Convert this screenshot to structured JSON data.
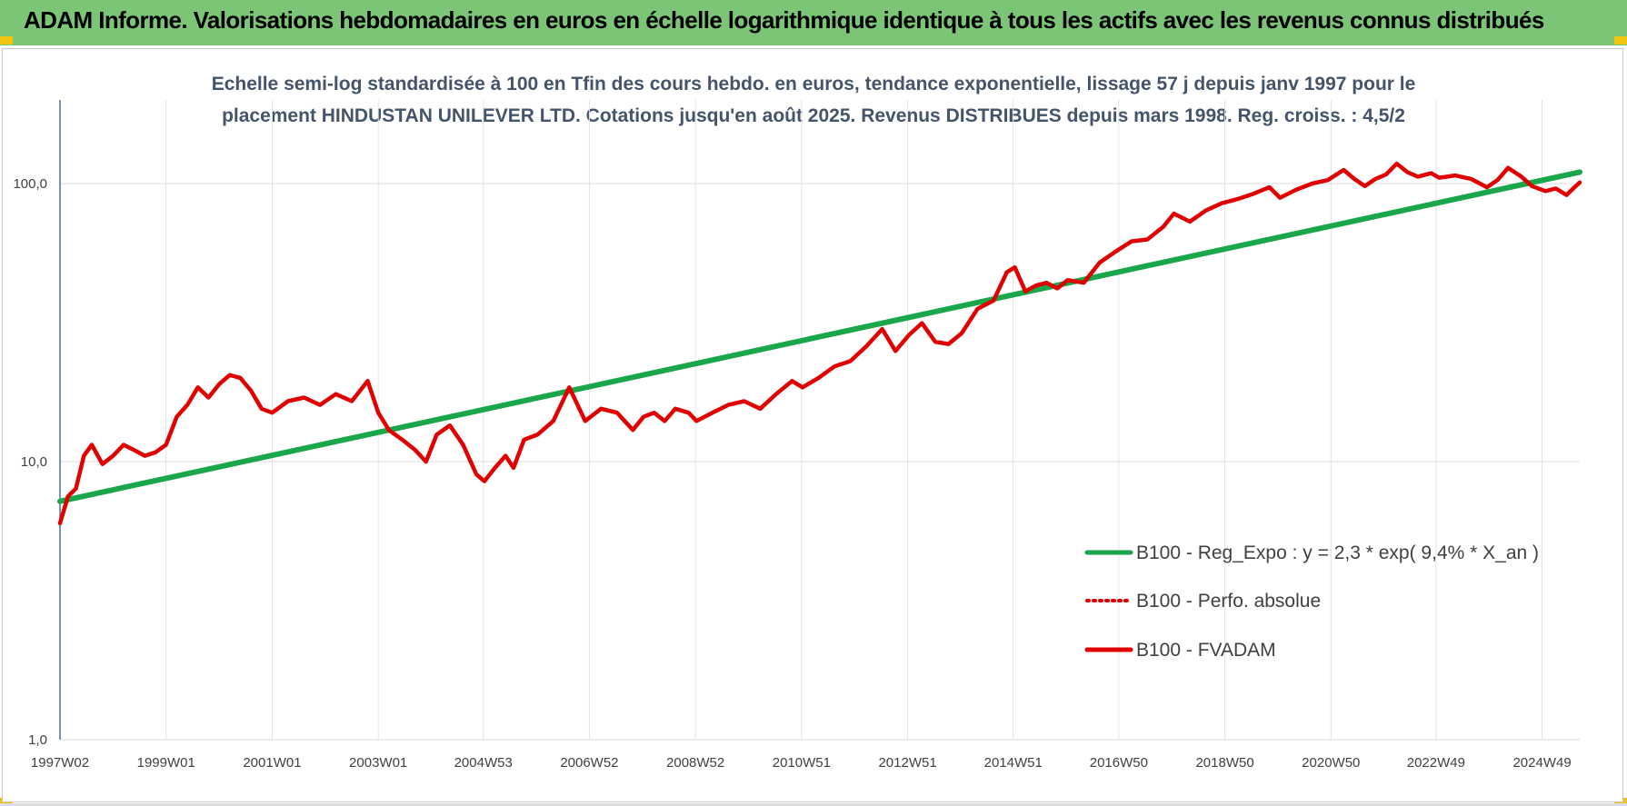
{
  "header": {
    "title": "ADAM Informe. Valorisations hebdomadaires en euros en échelle logarithmique identique à tous les actifs avec les revenus connus distribués"
  },
  "colors": {
    "header_bg": "#7cc576",
    "regression": "#1aa64a",
    "performance": "#e00000",
    "subtitle": "#44546a"
  },
  "chart_data": {
    "type": "line",
    "title_lines": [
      "Echelle semi-log standardisée à 100 en Tfin des cours hebdo. en euros, tendance exponentielle, lissage 57 j depuis janv 1997 pour le",
      "placement HINDUSTAN UNILEVER LTD. Cotations jusqu'en août 2025. Revenus DISTRIBUES depuis mars 1998. Reg. croiss. : 4,5/2"
    ],
    "y_scale": "log",
    "ylim": [
      1,
      200
    ],
    "y_ticks": [
      {
        "value": 1,
        "label": "1,0"
      },
      {
        "value": 10,
        "label": "10,0"
      },
      {
        "value": 100,
        "label": "100,0"
      }
    ],
    "xlim": [
      1997.0,
      2025.65
    ],
    "x_ticks": [
      {
        "value": 1997.0,
        "label": "1997W02"
      },
      {
        "value": 1999.0,
        "label": "1999W01"
      },
      {
        "value": 2001.0,
        "label": "2001W01"
      },
      {
        "value": 2003.0,
        "label": "2003W01"
      },
      {
        "value": 2004.98,
        "label": "2004W53"
      },
      {
        "value": 2006.98,
        "label": "2006W52"
      },
      {
        "value": 2008.98,
        "label": "2008W52"
      },
      {
        "value": 2010.98,
        "label": "2010W51"
      },
      {
        "value": 2012.98,
        "label": "2012W51"
      },
      {
        "value": 2014.97,
        "label": "2014W51"
      },
      {
        "value": 2016.96,
        "label": "2016W50"
      },
      {
        "value": 2018.96,
        "label": "2018W50"
      },
      {
        "value": 2020.96,
        "label": "2020W50"
      },
      {
        "value": 2022.94,
        "label": "2022W49"
      },
      {
        "value": 2024.94,
        "label": "2024W49"
      }
    ],
    "grid": {
      "vertical": true,
      "horizontal": true
    },
    "legend_position": "bottom-right",
    "series": [
      {
        "name": "B100 - Reg_Expo : y = 2,3 * exp( 9,4% *  X_an )",
        "style": "solid",
        "color": "#1aa64a",
        "x": [
          1997.0,
          2025.65
        ],
        "y": [
          7.2,
          110
        ]
      },
      {
        "name": "B100 - Perfo. absolue",
        "style": "dotted",
        "color": "#e00000",
        "x": [],
        "y": []
      },
      {
        "name": "B100 - FVADAM",
        "style": "solid",
        "color": "#e00000",
        "x": [
          1997.0,
          1997.15,
          1997.3,
          1997.45,
          1997.6,
          1997.8,
          1998.0,
          1998.2,
          1998.4,
          1998.6,
          1998.8,
          1999.0,
          1999.2,
          1999.4,
          1999.6,
          1999.8,
          2000.0,
          2000.2,
          2000.4,
          2000.6,
          2000.8,
          2001.0,
          2001.3,
          2001.6,
          2001.9,
          2002.2,
          2002.5,
          2002.8,
          2003.0,
          2003.2,
          2003.45,
          2003.7,
          2003.9,
          2004.1,
          2004.35,
          2004.6,
          2004.85,
          2005.0,
          2005.2,
          2005.4,
          2005.55,
          2005.75,
          2006.0,
          2006.3,
          2006.6,
          2006.9,
          2007.2,
          2007.5,
          2007.8,
          2008.0,
          2008.2,
          2008.4,
          2008.6,
          2008.85,
          2009.0,
          2009.3,
          2009.6,
          2009.9,
          2010.2,
          2010.5,
          2010.8,
          2011.0,
          2011.3,
          2011.6,
          2011.9,
          2012.2,
          2012.5,
          2012.75,
          2013.0,
          2013.25,
          2013.5,
          2013.75,
          2014.0,
          2014.3,
          2014.6,
          2014.85,
          2015.0,
          2015.2,
          2015.4,
          2015.6,
          2015.8,
          2016.0,
          2016.3,
          2016.6,
          2016.9,
          2017.2,
          2017.5,
          2017.8,
          2018.0,
          2018.3,
          2018.6,
          2018.9,
          2019.2,
          2019.5,
          2019.8,
          2020.0,
          2020.3,
          2020.6,
          2020.9,
          2021.2,
          2021.4,
          2021.6,
          2021.8,
          2022.0,
          2022.2,
          2022.4,
          2022.6,
          2022.85,
          2023.0,
          2023.3,
          2023.6,
          2023.9,
          2024.1,
          2024.3,
          2024.55,
          2024.75,
          2025.0,
          2025.2,
          2025.4,
          2025.55,
          2025.65
        ],
        "y": [
          6.0,
          7.5,
          8.0,
          10.5,
          11.5,
          9.8,
          10.5,
          11.5,
          11.0,
          10.5,
          10.8,
          11.5,
          14.5,
          16.0,
          18.5,
          17.0,
          19.0,
          20.5,
          20.0,
          18.0,
          15.5,
          15.0,
          16.5,
          17.0,
          16.0,
          17.5,
          16.5,
          19.5,
          15.0,
          13.0,
          12.0,
          11.0,
          10.0,
          12.5,
          13.5,
          11.5,
          9.0,
          8.5,
          9.5,
          10.5,
          9.5,
          12.0,
          12.5,
          14.0,
          18.5,
          14.0,
          15.5,
          15.0,
          13.0,
          14.5,
          15.0,
          14.0,
          15.5,
          15.0,
          14.0,
          15.0,
          16.0,
          16.5,
          15.5,
          17.5,
          19.5,
          18.5,
          20.0,
          22.0,
          23.0,
          26.0,
          30.0,
          25.0,
          28.5,
          31.5,
          27.0,
          26.5,
          29.0,
          35.5,
          38.0,
          48.0,
          50.0,
          41.0,
          43.0,
          44.0,
          42.0,
          45.0,
          44.0,
          52.0,
          57.0,
          62.0,
          63.0,
          70.0,
          78.0,
          73.0,
          80.0,
          85.0,
          88.0,
          92.0,
          97.0,
          89.0,
          95.0,
          100.0,
          103.0,
          112.0,
          104.0,
          98.0,
          104.0,
          108.0,
          118.0,
          110.0,
          106.0,
          109.0,
          105.0,
          107.0,
          104.0,
          97.0,
          103.0,
          114.0,
          106.0,
          98.0,
          94.0,
          96.0,
          91.0,
          97.0,
          101.0
        ]
      }
    ]
  }
}
